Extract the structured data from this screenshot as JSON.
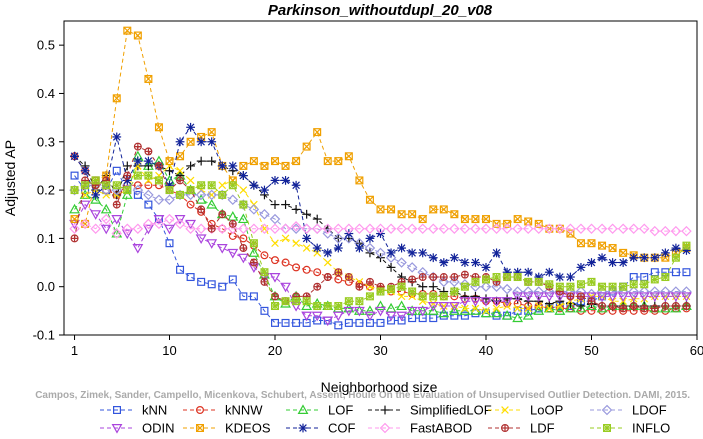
{
  "chart_data": {
    "type": "line",
    "title": "Parkinson_withoutdupl_20_v08",
    "xlabel": "Neighborhood size",
    "ylabel": "Adjusted AP",
    "xlim": [
      0,
      60
    ],
    "ylim": [
      -0.1,
      0.55
    ],
    "x_ticks": [
      "1",
      "10",
      "20",
      "30",
      "40",
      "50",
      "60"
    ],
    "y_ticks": [
      "-0.1",
      "0.0",
      "0.1",
      "0.2",
      "0.3",
      "0.4",
      "0.5"
    ],
    "grid": false,
    "legend_position": "bottom",
    "watermark": "Campos, Zimek, Sander, Campello, Micenkova, Schubert, Assent, Houle  On the Evaluation of Unsupervised Outlier Detection. DAMI, 2015.",
    "x": [
      1,
      2,
      3,
      4,
      5,
      6,
      7,
      8,
      9,
      10,
      11,
      12,
      13,
      14,
      15,
      16,
      17,
      18,
      19,
      20,
      21,
      22,
      23,
      24,
      25,
      26,
      27,
      28,
      29,
      30,
      31,
      32,
      33,
      34,
      35,
      36,
      37,
      38,
      39,
      40,
      41,
      42,
      43,
      44,
      45,
      46,
      47,
      48,
      49,
      50,
      51,
      52,
      53,
      54,
      55,
      56,
      57,
      58,
      59
    ],
    "series": [
      {
        "name": "kNN",
        "color": "#3355dd",
        "marker": "square",
        "dash": "4,3",
        "values": [
          0.23,
          0.2,
          0.22,
          0.2,
          0.24,
          0.2,
          0.19,
          0.17,
          0.14,
          0.09,
          0.035,
          0.02,
          0.01,
          0.005,
          0.0,
          0.015,
          -0.02,
          -0.02,
          -0.05,
          -0.075,
          -0.075,
          -0.075,
          -0.075,
          -0.07,
          -0.07,
          -0.08,
          -0.075,
          -0.075,
          -0.075,
          -0.075,
          -0.07,
          -0.07,
          -0.065,
          -0.065,
          -0.065,
          -0.06,
          -0.06,
          -0.06,
          -0.055,
          -0.055,
          -0.06,
          -0.06,
          -0.05,
          -0.05,
          -0.045,
          -0.045,
          -0.04,
          -0.04,
          -0.03,
          -0.03,
          -0.02,
          -0.01,
          0.0,
          0.02,
          0.02,
          0.03,
          0.03,
          0.03,
          0.03
        ]
      },
      {
        "name": "kNNW",
        "color": "#dd3322",
        "marker": "circle",
        "dash": "4,3",
        "values": [
          0.27,
          0.24,
          0.22,
          0.2,
          0.19,
          0.21,
          0.21,
          0.21,
          0.21,
          0.2,
          0.19,
          0.17,
          0.155,
          0.13,
          0.12,
          0.105,
          0.1,
          0.085,
          0.065,
          0.055,
          0.05,
          0.04,
          0.035,
          0.03,
          0.02,
          0.015,
          0.01,
          0.005,
          0.0,
          -0.005,
          -0.01,
          -0.01,
          -0.015,
          -0.015,
          -0.015,
          -0.02,
          -0.02,
          -0.025,
          -0.025,
          -0.03,
          -0.03,
          -0.035,
          -0.035,
          -0.04,
          -0.04,
          -0.045,
          -0.045,
          -0.045,
          -0.05,
          -0.05,
          -0.05,
          -0.05,
          -0.05,
          -0.05,
          -0.05,
          -0.05,
          -0.05,
          -0.045,
          -0.045
        ]
      },
      {
        "name": "LOF",
        "color": "#33cc33",
        "marker": "triangle",
        "dash": "4,3",
        "values": [
          0.16,
          0.19,
          0.18,
          0.16,
          0.11,
          0.19,
          0.27,
          0.25,
          0.26,
          0.22,
          0.23,
          0.2,
          0.18,
          0.17,
          0.15,
          0.145,
          0.14,
          0.07,
          0.025,
          -0.02,
          -0.035,
          -0.02,
          -0.04,
          -0.035,
          -0.04,
          -0.045,
          -0.045,
          -0.05,
          -0.05,
          -0.04,
          -0.045,
          -0.04,
          -0.05,
          -0.05,
          -0.05,
          -0.055,
          -0.05,
          -0.05,
          -0.05,
          -0.055,
          -0.055,
          -0.06,
          -0.065,
          -0.06,
          -0.05,
          -0.045,
          -0.05,
          -0.045,
          -0.045,
          -0.04,
          -0.045,
          -0.04,
          -0.04,
          -0.04,
          -0.04,
          -0.045,
          -0.045,
          -0.045,
          -0.04
        ]
      },
      {
        "name": "SimplifiedLOF",
        "color": "#111111",
        "marker": "plus",
        "dash": "4,3",
        "values": [
          0.27,
          0.25,
          0.2,
          0.23,
          0.19,
          0.25,
          0.25,
          0.25,
          0.25,
          0.24,
          0.23,
          0.25,
          0.26,
          0.26,
          0.25,
          0.24,
          0.23,
          0.21,
          0.19,
          0.17,
          0.17,
          0.16,
          0.15,
          0.14,
          0.12,
          0.1,
          0.1,
          0.09,
          0.07,
          0.06,
          0.04,
          0.02,
          0.01,
          0.0,
          0.0,
          -0.01,
          -0.01,
          -0.02,
          -0.02,
          -0.025,
          -0.03,
          -0.025,
          -0.025,
          -0.03,
          -0.03,
          -0.035,
          -0.03,
          -0.035,
          -0.04,
          -0.035,
          -0.04,
          -0.04,
          -0.04,
          -0.04,
          -0.04,
          -0.04,
          -0.04,
          -0.04,
          -0.04
        ]
      },
      {
        "name": "LoOP",
        "color": "#ffdd00",
        "marker": "cross",
        "dash": "4,3",
        "values": [
          0.2,
          0.19,
          0.2,
          0.19,
          0.19,
          0.2,
          0.25,
          0.22,
          0.23,
          0.25,
          0.24,
          0.22,
          0.2,
          0.19,
          0.21,
          0.22,
          0.2,
          0.17,
          0.12,
          0.09,
          0.1,
          0.09,
          0.08,
          0.07,
          0.05,
          0.03,
          0.02,
          0.01,
          0.0,
          -0.005,
          -0.01,
          -0.02,
          -0.02,
          -0.03,
          -0.035,
          -0.04,
          -0.04,
          -0.045,
          -0.045,
          -0.05,
          -0.045,
          -0.04,
          -0.045,
          -0.045,
          -0.04,
          -0.045,
          -0.04,
          -0.03,
          -0.025,
          -0.02,
          -0.02,
          -0.03,
          -0.03,
          -0.025,
          -0.025,
          -0.02,
          -0.02,
          -0.02,
          -0.02
        ]
      },
      {
        "name": "LDOF",
        "color": "#9999dd",
        "marker": "diamond",
        "dash": "4,3",
        "values": [
          0.2,
          0.21,
          0.21,
          0.2,
          0.2,
          0.21,
          0.2,
          0.19,
          0.18,
          0.18,
          0.19,
          0.19,
          0.19,
          0.19,
          0.19,
          0.18,
          0.17,
          0.16,
          0.15,
          0.14,
          0.12,
          0.12,
          0.12,
          0.12,
          0.11,
          0.1,
          0.1,
          0.09,
          0.08,
          0.07,
          0.06,
          0.05,
          0.04,
          0.03,
          0.02,
          0.01,
          0.01,
          0.005,
          0.0,
          0.0,
          0.0,
          -0.005,
          -0.01,
          -0.01,
          -0.01,
          -0.01,
          -0.01,
          -0.01,
          -0.01,
          -0.015,
          -0.01,
          -0.01,
          -0.01,
          -0.01,
          -0.01,
          -0.01,
          -0.01,
          -0.01,
          -0.01
        ]
      },
      {
        "name": "ODIN",
        "color": "#aa44dd",
        "marker": "triangle-down",
        "dash": "4,3",
        "values": [
          0.13,
          0.17,
          0.15,
          0.12,
          0.14,
          0.11,
          0.08,
          0.12,
          0.14,
          0.12,
          0.14,
          0.13,
          0.1,
          0.09,
          0.08,
          0.07,
          0.06,
          0.04,
          0.02,
          0.02,
          0.0,
          -0.04,
          -0.06,
          -0.06,
          -0.07,
          -0.06,
          -0.05,
          -0.05,
          -0.06,
          -0.05,
          -0.06,
          -0.06,
          -0.05,
          -0.05,
          -0.04,
          -0.04,
          -0.04,
          -0.03,
          -0.03,
          -0.03,
          -0.03,
          -0.03,
          -0.02,
          -0.02,
          -0.02,
          -0.02,
          -0.02,
          -0.02,
          -0.02,
          -0.02,
          -0.02,
          -0.02,
          -0.02,
          -0.02,
          -0.02,
          -0.02,
          -0.02,
          -0.02,
          -0.02
        ]
      },
      {
        "name": "KDEOS",
        "color": "#f0a000",
        "marker": "square-x",
        "dash": "4,3",
        "values": [
          0.14,
          0.13,
          0.22,
          0.23,
          0.39,
          0.53,
          0.52,
          0.43,
          0.33,
          0.26,
          0.27,
          0.3,
          0.31,
          0.32,
          0.25,
          0.22,
          0.25,
          0.26,
          0.25,
          0.26,
          0.25,
          0.26,
          0.29,
          0.32,
          0.26,
          0.26,
          0.27,
          0.22,
          0.18,
          0.16,
          0.16,
          0.15,
          0.15,
          0.14,
          0.16,
          0.16,
          0.15,
          0.14,
          0.14,
          0.14,
          0.13,
          0.13,
          0.14,
          0.135,
          0.13,
          0.12,
          0.12,
          0.11,
          0.09,
          0.09,
          0.085,
          0.08,
          0.07,
          0.065,
          0.06,
          0.06,
          0.06,
          0.07,
          0.08
        ]
      },
      {
        "name": "COF",
        "color": "#112299",
        "marker": "star",
        "dash": "4,3",
        "values": [
          0.27,
          0.24,
          0.19,
          0.21,
          0.31,
          0.22,
          0.26,
          0.26,
          0.25,
          0.21,
          0.3,
          0.33,
          0.3,
          0.3,
          0.25,
          0.25,
          0.23,
          0.21,
          0.2,
          0.22,
          0.22,
          0.21,
          0.1,
          0.08,
          0.07,
          0.08,
          0.11,
          0.08,
          0.1,
          0.11,
          0.07,
          0.08,
          0.07,
          0.07,
          0.06,
          0.05,
          0.06,
          0.05,
          0.05,
          0.04,
          0.07,
          0.03,
          0.03,
          0.03,
          0.02,
          0.03,
          0.02,
          0.02,
          0.04,
          0.05,
          0.06,
          0.05,
          0.05,
          0.06,
          0.06,
          0.06,
          0.07,
          0.08,
          0.075
        ]
      },
      {
        "name": "FastABOD",
        "color": "#ff99ee",
        "marker": "diamond",
        "dash": "4,3",
        "values": [
          0.12,
          0.13,
          0.12,
          0.14,
          0.11,
          0.12,
          0.12,
          0.13,
          0.13,
          0.14,
          0.13,
          0.12,
          0.12,
          0.12,
          0.12,
          0.12,
          0.12,
          0.12,
          0.12,
          0.12,
          0.12,
          0.125,
          0.12,
          0.12,
          0.12,
          0.12,
          0.12,
          0.12,
          0.12,
          0.12,
          0.12,
          0.12,
          0.12,
          0.12,
          0.12,
          0.12,
          0.12,
          0.12,
          0.12,
          0.12,
          0.12,
          0.12,
          0.12,
          0.12,
          0.12,
          0.12,
          0.12,
          0.12,
          0.12,
          0.12,
          0.12,
          0.12,
          0.12,
          0.12,
          0.12,
          0.115,
          0.115,
          0.115,
          0.115
        ]
      },
      {
        "name": "LDF",
        "color": "#b03030",
        "marker": "circle-plus",
        "dash": "4,3",
        "values": [
          0.1,
          0.22,
          0.21,
          0.22,
          0.17,
          0.23,
          0.29,
          0.28,
          0.25,
          0.2,
          0.22,
          0.2,
          0.16,
          0.12,
          0.15,
          0.13,
          0.08,
          0.05,
          0.01,
          -0.02,
          -0.03,
          -0.02,
          -0.02,
          0.0,
          0.02,
          0.03,
          0.02,
          0.0,
          0.01,
          0.0,
          0.0,
          0.01,
          0.015,
          0.02,
          0.02,
          0.02,
          0.02,
          0.025,
          0.02,
          0.02,
          0.01,
          0.02,
          0.02,
          0.01,
          0.01,
          0.0,
          -0.01,
          -0.02,
          -0.02,
          -0.03,
          -0.04,
          -0.04,
          -0.045,
          -0.04,
          -0.045,
          -0.045,
          -0.04,
          -0.04,
          -0.04
        ]
      },
      {
        "name": "INFLO",
        "color": "#99cc22",
        "marker": "star-box",
        "dash": "4,3",
        "values": [
          0.2,
          0.21,
          0.22,
          0.21,
          0.21,
          0.2,
          0.23,
          0.23,
          0.22,
          0.2,
          0.19,
          0.2,
          0.21,
          0.21,
          0.19,
          0.21,
          0.17,
          0.09,
          0.03,
          -0.04,
          -0.03,
          -0.03,
          -0.03,
          -0.04,
          -0.04,
          -0.04,
          -0.03,
          -0.03,
          -0.02,
          -0.01,
          -0.005,
          0.0,
          -0.01,
          -0.02,
          -0.02,
          -0.02,
          -0.01,
          0.0,
          0.01,
          0.015,
          0.02,
          0.02,
          0.02,
          0.01,
          0.01,
          0.005,
          0.0,
          0.0,
          0.005,
          0.01,
          0.0,
          0.0,
          0.0,
          0.005,
          0.005,
          0.015,
          0.02,
          0.06,
          0.085
        ]
      }
    ]
  }
}
